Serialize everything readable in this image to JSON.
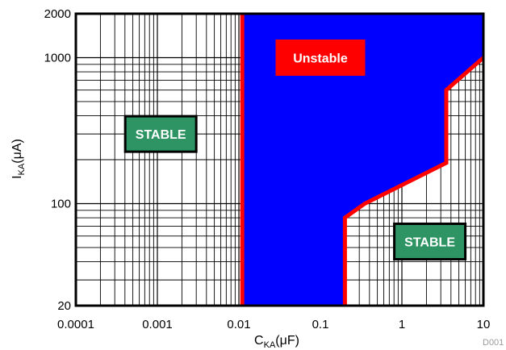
{
  "chart_data": {
    "type": "area",
    "xlabel": {
      "main": "C",
      "sub": "KA",
      "rest": "(μF)"
    },
    "ylabel": {
      "main": "I",
      "sub": "KA",
      "rest": "(μA)"
    },
    "x_scale": "log",
    "y_scale": "log",
    "xlim": [
      0.0001,
      10
    ],
    "ylim": [
      20,
      2000
    ],
    "x_ticks": [
      {
        "value": 0.0001,
        "label": "0.0001"
      },
      {
        "value": 0.001,
        "label": "0.001"
      },
      {
        "value": 0.01,
        "label": "0.01"
      },
      {
        "value": 0.1,
        "label": "0.1"
      },
      {
        "value": 1,
        "label": "1"
      },
      {
        "value": 10,
        "label": "10"
      }
    ],
    "y_ticks": [
      {
        "value": 20,
        "label": "20"
      },
      {
        "value": 100,
        "label": "100"
      },
      {
        "value": 1000,
        "label": "1000"
      },
      {
        "value": 2000,
        "label": "2000"
      }
    ],
    "grid": true,
    "series": [
      {
        "name": "Unstable",
        "fill_color": "#0000ff",
        "line_color": "#ff0000",
        "points": [
          {
            "x": 0.011,
            "y": 20
          },
          {
            "x": 0.011,
            "y": 2000
          },
          {
            "x": 10,
            "y": 2000
          },
          {
            "x": 10,
            "y": 1000
          },
          {
            "x": 3.5,
            "y": 600
          },
          {
            "x": 3.5,
            "y": 190
          },
          {
            "x": 0.35,
            "y": 100
          },
          {
            "x": 0.2,
            "y": 80
          },
          {
            "x": 0.2,
            "y": 20
          }
        ]
      }
    ],
    "boundary_lines": [
      {
        "points": [
          {
            "x": 0.011,
            "y": 20
          },
          {
            "x": 0.011,
            "y": 2000
          }
        ]
      },
      {
        "points": [
          {
            "x": 0.2,
            "y": 20
          },
          {
            "x": 0.2,
            "y": 80
          },
          {
            "x": 0.35,
            "y": 100
          },
          {
            "x": 3.5,
            "y": 190
          },
          {
            "x": 3.5,
            "y": 600
          },
          {
            "x": 10,
            "y": 1000
          }
        ]
      }
    ],
    "annotations": [
      {
        "text": "Unstable",
        "x": 0.1,
        "y": 1000,
        "bg": "#ff0000",
        "border": "#ff0000"
      },
      {
        "text": "STABLE",
        "x": 0.0011,
        "y": 300,
        "bg": "#2e9463",
        "border": "#000000"
      },
      {
        "text": "STABLE",
        "x": 2.2,
        "y": 55,
        "bg": "#2e9463",
        "border": "#000000"
      }
    ],
    "figure_code": "D001"
  }
}
